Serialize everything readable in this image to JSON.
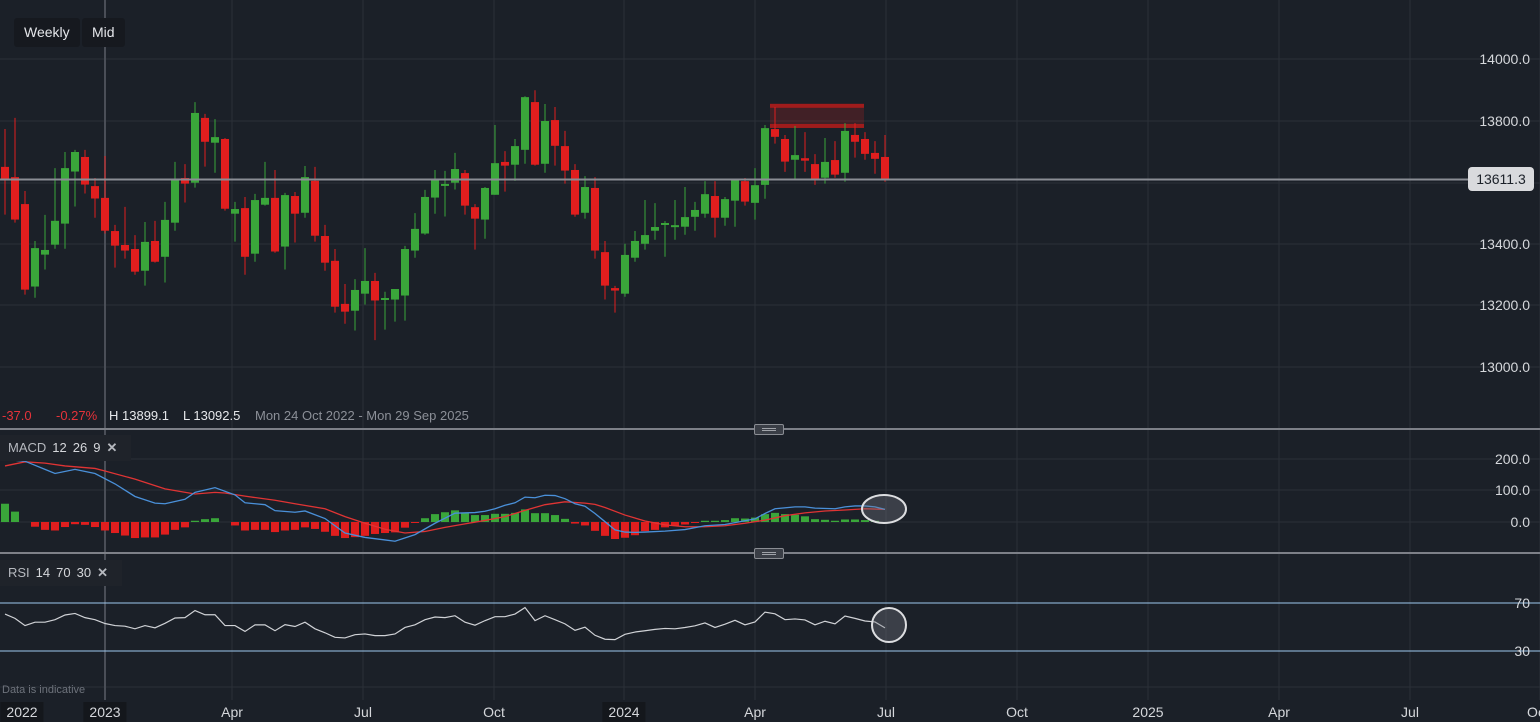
{
  "toolbar": {
    "interval": "Weekly",
    "price_type": "Mid"
  },
  "info_bar": {
    "change": "-37.0",
    "change_pct": "-0.27%",
    "high": "H 13899.1",
    "low": "L 13092.5",
    "range": "Mon 24 Oct 2022 - Mon 29 Sep 2025"
  },
  "current_price": "13611.3",
  "disclaimer": "Data is indicative",
  "colors": {
    "up": "#3aa63a",
    "down": "#e01e1e",
    "macd_line": "#4a90d9",
    "signal_line": "#e03434",
    "rsi_line": "#d0d2d6",
    "rsi_bands": "#9ec8ee",
    "background": "#1b2028"
  },
  "chart_data": [
    {
      "type": "candlestick",
      "interval": "Weekly",
      "ohlc_fields": [
        "open",
        "high",
        "low",
        "close"
      ],
      "candles": [
        [
          13652,
          13774,
          13498,
          13608
        ],
        [
          13619,
          13810,
          13472,
          13482
        ],
        [
          13532,
          13574,
          13240,
          13256
        ],
        [
          13266,
          13413,
          13230,
          13390
        ],
        [
          13369,
          13497,
          13321,
          13384
        ],
        [
          13401,
          13648,
          13388,
          13478
        ],
        [
          13469,
          13700,
          13388,
          13648
        ],
        [
          13637,
          13707,
          13524,
          13700
        ],
        [
          13684,
          13707,
          13566,
          13595
        ],
        [
          13590,
          13616,
          13488,
          13550
        ],
        [
          13552,
          13687,
          13437,
          13446
        ],
        [
          13445,
          13465,
          13327,
          13398
        ],
        [
          13400,
          13523,
          13356,
          13382
        ],
        [
          13387,
          13432,
          13304,
          13314
        ],
        [
          13317,
          13474,
          13269,
          13410
        ],
        [
          13413,
          13478,
          13343,
          13346
        ],
        [
          13362,
          13539,
          13279,
          13481
        ],
        [
          13472,
          13668,
          13446,
          13614
        ],
        [
          13616,
          13661,
          13537,
          13598
        ],
        [
          13601,
          13861,
          13585,
          13826
        ],
        [
          13810,
          13823,
          13653,
          13733
        ],
        [
          13730,
          13806,
          13633,
          13748
        ],
        [
          13742,
          13745,
          13511,
          13517
        ],
        [
          13501,
          13539,
          13411,
          13516
        ],
        [
          13519,
          13555,
          13304,
          13362
        ],
        [
          13372,
          13565,
          13346,
          13545
        ],
        [
          13530,
          13668,
          13527,
          13552
        ],
        [
          13552,
          13642,
          13375,
          13379
        ],
        [
          13395,
          13568,
          13321,
          13561
        ],
        [
          13558,
          13571,
          13408,
          13501
        ],
        [
          13504,
          13655,
          13488,
          13619
        ],
        [
          13607,
          13652,
          13411,
          13430
        ],
        [
          13429,
          13465,
          13317,
          13343
        ],
        [
          13349,
          13387,
          13182,
          13201
        ],
        [
          13210,
          13274,
          13146,
          13185
        ],
        [
          13188,
          13290,
          13124,
          13255
        ],
        [
          13243,
          13390,
          13208,
          13284
        ],
        [
          13284,
          13310,
          13093,
          13221
        ],
        [
          13224,
          13249,
          13127,
          13229
        ],
        [
          13224,
          13258,
          13153,
          13258
        ],
        [
          13237,
          13397,
          13156,
          13387
        ],
        [
          13382,
          13503,
          13359,
          13452
        ],
        [
          13437,
          13578,
          13433,
          13555
        ],
        [
          13553,
          13642,
          13501,
          13611
        ],
        [
          13591,
          13639,
          13492,
          13597
        ],
        [
          13601,
          13697,
          13579,
          13645
        ],
        [
          13632,
          13642,
          13498,
          13527
        ],
        [
          13522,
          13532,
          13385,
          13485
        ],
        [
          13482,
          13587,
          13420,
          13584
        ],
        [
          13562,
          13787,
          13562,
          13664
        ],
        [
          13668,
          13703,
          13572,
          13656
        ],
        [
          13659,
          13742,
          13607,
          13719
        ],
        [
          13707,
          13880,
          13662,
          13877
        ],
        [
          13861,
          13899,
          13656,
          13659
        ],
        [
          13662,
          13855,
          13633,
          13800
        ],
        [
          13803,
          13845,
          13656,
          13720
        ],
        [
          13719,
          13768,
          13598,
          13640
        ],
        [
          13642,
          13661,
          13491,
          13498
        ],
        [
          13504,
          13622,
          13485,
          13587
        ],
        [
          13584,
          13619,
          13356,
          13382
        ],
        [
          13377,
          13413,
          13224,
          13269
        ],
        [
          13261,
          13268,
          13182,
          13253
        ],
        [
          13243,
          13404,
          13233,
          13368
        ],
        [
          13359,
          13445,
          13346,
          13413
        ],
        [
          13404,
          13545,
          13385,
          13432
        ],
        [
          13446,
          13535,
          13417,
          13458
        ],
        [
          13465,
          13477,
          13362,
          13471
        ],
        [
          13459,
          13545,
          13417,
          13464
        ],
        [
          13459,
          13587,
          13433,
          13490
        ],
        [
          13491,
          13539,
          13446,
          13513
        ],
        [
          13501,
          13606,
          13488,
          13564
        ],
        [
          13558,
          13606,
          13424,
          13488
        ],
        [
          13488,
          13555,
          13462,
          13548
        ],
        [
          13543,
          13613,
          13459,
          13610
        ],
        [
          13606,
          13616,
          13527,
          13540
        ],
        [
          13536,
          13648,
          13482,
          13593
        ],
        [
          13594,
          13787,
          13549,
          13777
        ],
        [
          13774,
          13845,
          13727,
          13749
        ],
        [
          13742,
          13755,
          13636,
          13669
        ],
        [
          13675,
          13784,
          13614,
          13690
        ],
        [
          13680,
          13764,
          13636,
          13672
        ],
        [
          13661,
          13693,
          13594,
          13614
        ],
        [
          13617,
          13745,
          13598,
          13668
        ],
        [
          13674,
          13735,
          13617,
          13627
        ],
        [
          13633,
          13793,
          13604,
          13768
        ],
        [
          13755,
          13793,
          13682,
          13733
        ],
        [
          13742,
          13764,
          13675,
          13694
        ],
        [
          13697,
          13735,
          13630,
          13678
        ],
        [
          13684,
          13755,
          13604,
          13611
        ]
      ],
      "resistance_zone": [
        13784,
        13849
      ],
      "y_axis": {
        "ticks": [
          "14000.0",
          "13800.0",
          "13400.0",
          "13200.0",
          "13000.0"
        ],
        "range": [
          12800,
          14190
        ]
      },
      "x_axis": {
        "ticks": [
          "2022",
          "2023",
          "Apr",
          "Jul",
          "Oct",
          "2024",
          "Apr",
          "Jul",
          "Oct",
          "2025",
          "Apr",
          "Jul",
          "Oc"
        ],
        "year_ticks": [
          "2022",
          "2023",
          "2024"
        ]
      },
      "grid": true
    },
    {
      "type": "macd",
      "label": "MACD",
      "params": [
        "12",
        "26",
        "9"
      ],
      "histogram": [
        58,
        33,
        0,
        -15,
        -25,
        -27,
        -16,
        -7,
        -9,
        -16,
        -27,
        -35,
        -43,
        -51,
        -49,
        -49,
        -40,
        -25,
        -17,
        4,
        9,
        12,
        0,
        -11,
        -27,
        -25,
        -25,
        -32,
        -27,
        -25,
        -17,
        -22,
        -31,
        -44,
        -51,
        -48,
        -44,
        -38,
        -35,
        -33,
        -18,
        -2,
        12,
        25,
        31,
        37,
        30,
        22,
        22,
        26,
        26,
        29,
        40,
        28,
        28,
        22,
        10,
        -5,
        -11,
        -28,
        -44,
        -54,
        -50,
        -42,
        -29,
        -25,
        -17,
        -12,
        -8,
        -2,
        4,
        4,
        6,
        12,
        11,
        14,
        25,
        29,
        25,
        23,
        18,
        9,
        7,
        4,
        8,
        8,
        6,
        4,
        -1
      ],
      "macd_line": [
        [
          0,
          199
        ],
        [
          2,
          193
        ],
        [
          4,
          167
        ],
        [
          5,
          154
        ],
        [
          7,
          167
        ],
        [
          9,
          154
        ],
        [
          11,
          121
        ],
        [
          13,
          81
        ],
        [
          15,
          60
        ],
        [
          16,
          58
        ],
        [
          18,
          72
        ],
        [
          19,
          94
        ],
        [
          21,
          109
        ],
        [
          23,
          86
        ],
        [
          24,
          61
        ],
        [
          26,
          55
        ],
        [
          27,
          36
        ],
        [
          29,
          31
        ],
        [
          30,
          35
        ],
        [
          32,
          11
        ],
        [
          34,
          -35
        ],
        [
          36,
          -49
        ],
        [
          38,
          -57
        ],
        [
          39,
          -61
        ],
        [
          41,
          -40
        ],
        [
          43,
          -4
        ],
        [
          45,
          28
        ],
        [
          47,
          30
        ],
        [
          48,
          34
        ],
        [
          49,
          42
        ],
        [
          50,
          53
        ],
        [
          51,
          61
        ],
        [
          52,
          79
        ],
        [
          53,
          77
        ],
        [
          54,
          85
        ],
        [
          55,
          84
        ],
        [
          56,
          74
        ],
        [
          57,
          58
        ],
        [
          58,
          50
        ],
        [
          59,
          27
        ],
        [
          60,
          1
        ],
        [
          61,
          -25
        ],
        [
          62,
          -32
        ],
        [
          63,
          -33
        ],
        [
          64,
          -32
        ],
        [
          66,
          -29
        ],
        [
          68,
          -24
        ],
        [
          70,
          -12
        ],
        [
          72,
          -8
        ],
        [
          74,
          4
        ],
        [
          75,
          10
        ],
        [
          76,
          27
        ],
        [
          77,
          42
        ],
        [
          79,
          48
        ],
        [
          80,
          48
        ],
        [
          81,
          44
        ],
        [
          83,
          42
        ],
        [
          84,
          48
        ],
        [
          85,
          51
        ],
        [
          86,
          51
        ],
        [
          87,
          48
        ],
        [
          88,
          40
        ]
      ],
      "signal_line": [
        [
          0,
          178
        ],
        [
          2,
          191
        ],
        [
          4,
          187
        ],
        [
          6,
          178
        ],
        [
          9,
          170
        ],
        [
          10,
          162
        ],
        [
          13,
          136
        ],
        [
          16,
          105
        ],
        [
          19,
          89
        ],
        [
          21,
          94
        ],
        [
          22,
          92
        ],
        [
          24,
          82
        ],
        [
          27,
          69
        ],
        [
          29,
          58
        ],
        [
          32,
          42
        ],
        [
          34,
          17
        ],
        [
          36,
          -4
        ],
        [
          38,
          -23
        ],
        [
          40,
          -35
        ],
        [
          42,
          -30
        ],
        [
          44,
          -17
        ],
        [
          46,
          -6
        ],
        [
          48,
          5
        ],
        [
          50,
          17
        ],
        [
          52,
          37
        ],
        [
          54,
          55
        ],
        [
          56,
          64
        ],
        [
          58,
          60
        ],
        [
          59,
          56
        ],
        [
          60,
          46
        ],
        [
          62,
          22
        ],
        [
          64,
          3
        ],
        [
          66,
          -9
        ],
        [
          68,
          -15
        ],
        [
          70,
          -15
        ],
        [
          72,
          -12
        ],
        [
          74,
          -4
        ],
        [
          76,
          6
        ],
        [
          78,
          20
        ],
        [
          80,
          29
        ],
        [
          82,
          35
        ],
        [
          84,
          38
        ],
        [
          86,
          42
        ],
        [
          88,
          40
        ]
      ],
      "y_axis": {
        "ticks": [
          "200.0",
          "100.0",
          "0.0"
        ]
      },
      "annotation": "circle-highlight-latest"
    },
    {
      "type": "rsi",
      "label": "RSI",
      "params": [
        "14",
        "70",
        "30"
      ],
      "values": [
        60.8,
        57.2,
        51.2,
        54,
        54,
        56.1,
        60,
        61.3,
        57.8,
        56.1,
        52.9,
        51.2,
        50.7,
        48.5,
        51.2,
        49.3,
        53.1,
        57.5,
        57.8,
        63.7,
        60.2,
        60.2,
        51.2,
        51.2,
        46.3,
        51.8,
        51.8,
        46.9,
        52,
        50.4,
        54,
        48.5,
        45.2,
        41.4,
        40.9,
        43.6,
        44.2,
        42.8,
        42.8,
        44.2,
        49.6,
        51.8,
        56.1,
        58.3,
        57.8,
        59.4,
        54,
        51.5,
        55.3,
        58.6,
        58.6,
        60.8,
        66.2,
        55.3,
        59.4,
        56.1,
        52.6,
        47.2,
        49.9,
        43.1,
        39.8,
        39.5,
        43.9,
        45.8,
        46.9,
        48,
        48.8,
        48.5,
        49.6,
        51,
        53.4,
        49.6,
        52.3,
        55.6,
        51.8,
        54.2,
        62.4,
        61,
        56.1,
        56.7,
        55.9,
        51.8,
        54.8,
        52.6,
        59.1,
        57.2,
        55,
        54.2,
        49.3
      ],
      "bands": [
        70,
        30
      ],
      "y_axis": {
        "ticks": [
          "70",
          "30"
        ]
      },
      "annotation": "circle-highlight-latest"
    }
  ]
}
